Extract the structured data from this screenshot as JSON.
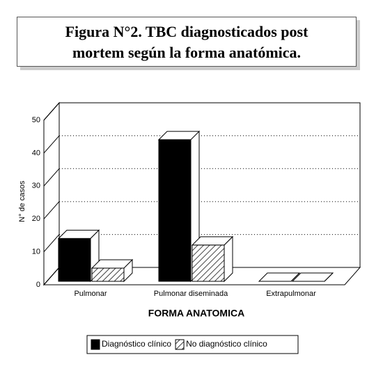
{
  "chart_data": {
    "type": "bar3d",
    "title": "Figura N°2. TBC diagnosticados post mortem según la forma anatómica.",
    "xlabel": "FORMA ANATOMICA",
    "ylabel": "N° de casos",
    "categories": [
      "Pulmonar",
      "Pulmonar diseminada",
      "Extrapulmonar"
    ],
    "series": [
      {
        "name": "Diagnóstico clínico",
        "color": "#000000",
        "values": [
          13,
          43,
          0
        ]
      },
      {
        "name": "No diagnóstico clínico",
        "color": "#ffffff",
        "pattern": "hatch",
        "values": [
          4,
          11,
          0
        ]
      }
    ],
    "ylim": [
      0,
      50
    ],
    "yticks": [
      0,
      10,
      20,
      30,
      40,
      50
    ],
    "grid": true
  }
}
